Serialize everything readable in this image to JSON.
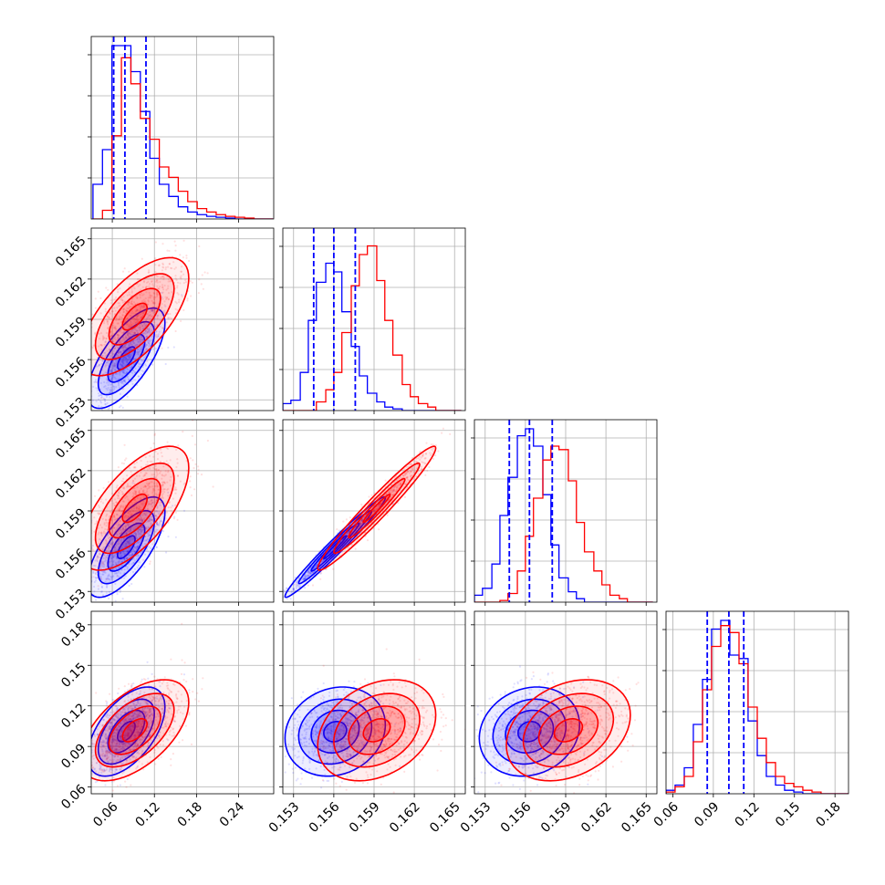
{
  "chart_data": {
    "type": "corner",
    "grid": true,
    "colors": {
      "blue": "#0000ff",
      "red": "#ff0000"
    },
    "quantile_line_style": "dashed",
    "parameters": [
      {
        "ticks": [
          "0.06",
          "0.12",
          "0.18",
          "0.24"
        ],
        "range": [
          0.03,
          0.29
        ]
      },
      {
        "ticks": [
          "0.153",
          "0.156",
          "0.159",
          "0.162",
          "0.165"
        ],
        "range": [
          0.1522,
          0.1658
        ]
      },
      {
        "ticks": [
          "0.153",
          "0.156",
          "0.159",
          "0.162",
          "0.165"
        ],
        "range": [
          0.1522,
          0.1658
        ]
      },
      {
        "ticks": [
          "0.06",
          "0.09",
          "0.12",
          "0.15",
          "0.18"
        ],
        "range": [
          0.055,
          0.19
        ]
      }
    ],
    "series": [
      {
        "color": "#0000ff",
        "means": [
          0.08,
          0.1561,
          0.1563,
          0.101
        ],
        "sds": [
          0.025,
          0.0017,
          0.0017,
          0.015
        ],
        "quantiles": [
          [
            0.062,
            0.078,
            0.108
          ],
          [
            0.1545,
            0.156,
            0.1576
          ],
          [
            0.1548,
            0.1563,
            0.158
          ],
          [
            0.0855,
            0.1015,
            0.1125
          ]
        ]
      },
      {
        "color": "#ff0000",
        "means": [
          0.092,
          0.1592,
          0.1592,
          0.102
        ],
        "sds": [
          0.035,
          0.002,
          0.0021,
          0.017
        ],
        "quantiles": []
      }
    ],
    "correlations": {
      "blue": {
        "1-0": 0.7,
        "2-0": 0.7,
        "2-1": 0.98,
        "3-0": 0.55,
        "3-1": 0.15,
        "3-2": 0.15
      },
      "red": {
        "1-0": 0.65,
        "2-0": 0.65,
        "2-1": 0.97,
        "3-0": 0.55,
        "3-1": 0.3,
        "3-2": 0.3
      }
    },
    "histograms": [
      {
        "bins": [
          0.0325,
          0.046,
          0.0595,
          0.073,
          0.0865,
          0.1,
          0.1135,
          0.127,
          0.1405,
          0.154,
          0.1675,
          0.181,
          0.1945,
          0.208,
          0.2215,
          0.235,
          0.2485,
          0.262,
          0.2755,
          0.289
        ],
        "blue": [
          0.2,
          0.4,
          1.0,
          1.0,
          0.85,
          0.62,
          0.35,
          0.2,
          0.13,
          0.07,
          0.04,
          0.025,
          0.015,
          0.01,
          0.005,
          0.0,
          0.0,
          0.0,
          0.0
        ],
        "red": [
          0.0,
          0.05,
          0.48,
          0.93,
          0.78,
          0.58,
          0.46,
          0.3,
          0.24,
          0.16,
          0.1,
          0.06,
          0.04,
          0.025,
          0.015,
          0.01,
          0.005,
          0.0,
          0.0
        ]
      },
      {
        "bins": [
          0.1522,
          0.1528,
          0.1535,
          0.1541,
          0.1547,
          0.1554,
          0.156,
          0.1566,
          0.1573,
          0.1579,
          0.1585,
          0.1592,
          0.1598,
          0.1604,
          0.1611,
          0.1617,
          0.1623,
          0.163,
          0.1636,
          0.1642,
          0.1649,
          0.1655
        ],
        "blue": [
          0.04,
          0.06,
          0.22,
          0.52,
          0.74,
          0.85,
          0.8,
          0.57,
          0.37,
          0.2,
          0.1,
          0.05,
          0.02,
          0.01,
          0.0,
          0.0,
          0.0,
          0.0,
          0.0,
          0.0,
          0.0
        ],
        "red": [
          0.0,
          0.0,
          0.0,
          0.0,
          0.05,
          0.12,
          0.22,
          0.45,
          0.72,
          0.9,
          0.95,
          0.75,
          0.52,
          0.32,
          0.15,
          0.08,
          0.04,
          0.02,
          0.0,
          0.0,
          0.0
        ]
      },
      {
        "bins": [
          0.1522,
          0.1528,
          0.1535,
          0.1541,
          0.1547,
          0.1554,
          0.156,
          0.1566,
          0.1573,
          0.1579,
          0.1585,
          0.1592,
          0.1598,
          0.1604,
          0.1611,
          0.1617,
          0.1623,
          0.163,
          0.1636,
          0.1642,
          0.1649,
          0.1655
        ],
        "blue": [
          0.04,
          0.08,
          0.22,
          0.5,
          0.72,
          0.96,
          1.0,
          0.9,
          0.62,
          0.33,
          0.14,
          0.06,
          0.02,
          0.0,
          0.0,
          0.0,
          0.0,
          0.0,
          0.0,
          0.0,
          0.0
        ],
        "red": [
          0.0,
          0.0,
          0.0,
          0.01,
          0.05,
          0.18,
          0.38,
          0.6,
          0.82,
          0.9,
          0.88,
          0.7,
          0.46,
          0.29,
          0.18,
          0.1,
          0.04,
          0.02,
          0.0,
          0.0,
          0.0
        ]
      },
      {
        "bins": [
          0.055,
          0.0617,
          0.0685,
          0.0752,
          0.082,
          0.0887,
          0.0955,
          0.1022,
          0.109,
          0.1157,
          0.1225,
          0.1292,
          0.136,
          0.1427,
          0.1495,
          0.1562,
          0.163,
          0.1697,
          0.1765,
          0.1832,
          0.19
        ],
        "blue": [
          0.02,
          0.05,
          0.15,
          0.4,
          0.66,
          0.95,
          1.0,
          0.8,
          0.78,
          0.42,
          0.22,
          0.1,
          0.05,
          0.02,
          0.01,
          0.0,
          0.0,
          0.0,
          0.0,
          0.0
        ],
        "red": [
          0.01,
          0.04,
          0.1,
          0.3,
          0.6,
          0.85,
          0.97,
          0.93,
          0.75,
          0.5,
          0.32,
          0.18,
          0.1,
          0.06,
          0.04,
          0.02,
          0.01,
          0.0,
          0.0,
          0.0
        ]
      }
    ]
  }
}
